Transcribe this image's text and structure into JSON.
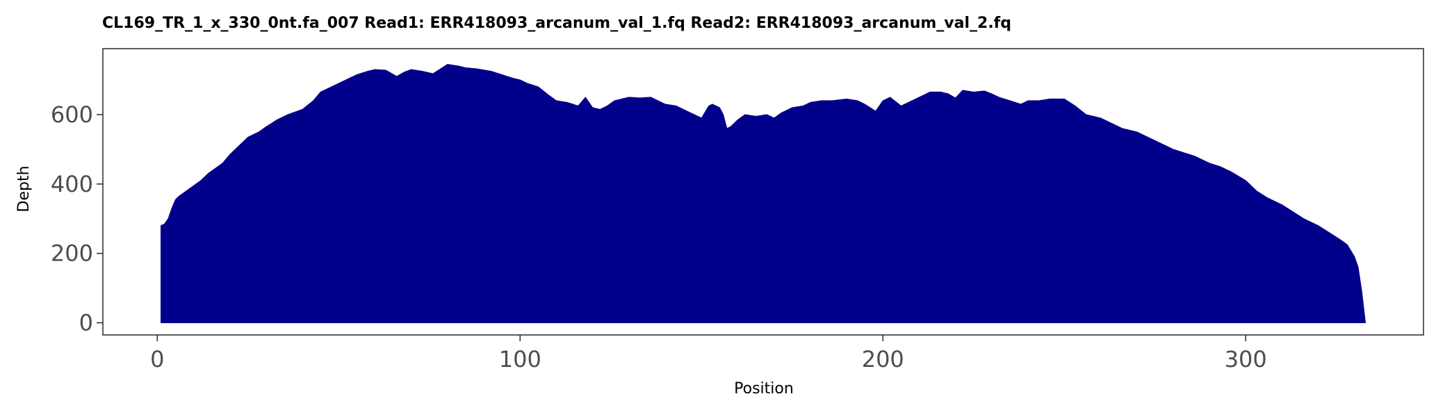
{
  "chart_data": {
    "type": "area",
    "title": "CL169_TR_1_x_330_0nt.fa_007   Read1: ERR418093_arcanum_val_1.fq   Read2: ERR418093_arcanum_val_2.fq",
    "xlabel": "Position",
    "ylabel": "Depth",
    "xlim": [
      -15,
      349
    ],
    "ylim": [
      -35,
      790
    ],
    "xticks": [
      0,
      100,
      200,
      300
    ],
    "yticks": [
      0,
      200,
      400,
      600
    ],
    "fill_color": "#00008b",
    "grid": false,
    "legend": "none",
    "series": [
      {
        "x": [
          1,
          2,
          3,
          4,
          5,
          6,
          8,
          10,
          12,
          14,
          16,
          18,
          20,
          22,
          25,
          28,
          30,
          33,
          36,
          40,
          43,
          45,
          48,
          50,
          52,
          55,
          58,
          60,
          63,
          66,
          68,
          70,
          73,
          76,
          80,
          83,
          85,
          88,
          92,
          95,
          98,
          100,
          102,
          105,
          108,
          110,
          113,
          116,
          118,
          120,
          122,
          124,
          126,
          128,
          130,
          133,
          136,
          138,
          140,
          143,
          146,
          150,
          152,
          153,
          155,
          156,
          157,
          158,
          160,
          162,
          165,
          168,
          170,
          172,
          175,
          178,
          180,
          183,
          186,
          190,
          193,
          195,
          198,
          200,
          202,
          205,
          208,
          210,
          213,
          216,
          218,
          220,
          222,
          225,
          228,
          230,
          232,
          235,
          238,
          240,
          243,
          246,
          250,
          253,
          256,
          260,
          263,
          266,
          270,
          273,
          276,
          280,
          283,
          286,
          290,
          293,
          296,
          300,
          303,
          306,
          310,
          313,
          316,
          320,
          323,
          326,
          328,
          330,
          331,
          332,
          333
        ],
        "y": [
          280,
          285,
          300,
          330,
          355,
          365,
          380,
          395,
          410,
          430,
          445,
          460,
          485,
          505,
          535,
          550,
          565,
          585,
          600,
          615,
          640,
          665,
          680,
          690,
          700,
          715,
          725,
          730,
          728,
          710,
          722,
          730,
          725,
          718,
          745,
          740,
          735,
          732,
          725,
          715,
          705,
          700,
          690,
          680,
          655,
          640,
          635,
          625,
          650,
          620,
          615,
          625,
          640,
          645,
          650,
          648,
          650,
          640,
          630,
          625,
          610,
          590,
          625,
          630,
          620,
          600,
          560,
          565,
          585,
          600,
          595,
          600,
          590,
          605,
          620,
          625,
          635,
          640,
          640,
          645,
          640,
          630,
          610,
          640,
          650,
          625,
          640,
          650,
          665,
          665,
          660,
          648,
          670,
          665,
          668,
          660,
          650,
          640,
          630,
          640,
          640,
          645,
          645,
          625,
          600,
          590,
          575,
          560,
          550,
          535,
          520,
          500,
          490,
          480,
          460,
          450,
          435,
          410,
          380,
          360,
          340,
          320,
          300,
          280,
          260,
          240,
          225,
          190,
          160,
          90,
          0
        ]
      }
    ]
  }
}
